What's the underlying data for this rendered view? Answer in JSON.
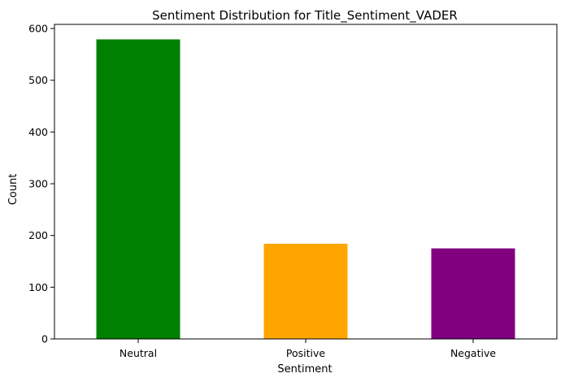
{
  "chart_data": {
    "type": "bar",
    "title": "Sentiment Distribution for Title_Sentiment_VADER",
    "xlabel": "Sentiment",
    "ylabel": "Count",
    "categories": [
      "Neutral",
      "Positive",
      "Negative"
    ],
    "values": [
      579,
      184,
      175
    ],
    "colors": [
      "#008000",
      "#ffa500",
      "#800080"
    ],
    "ylim": [
      0,
      608
    ],
    "yticks": [
      0,
      100,
      200,
      300,
      400,
      500,
      600
    ],
    "grid": false,
    "legend": "none"
  }
}
